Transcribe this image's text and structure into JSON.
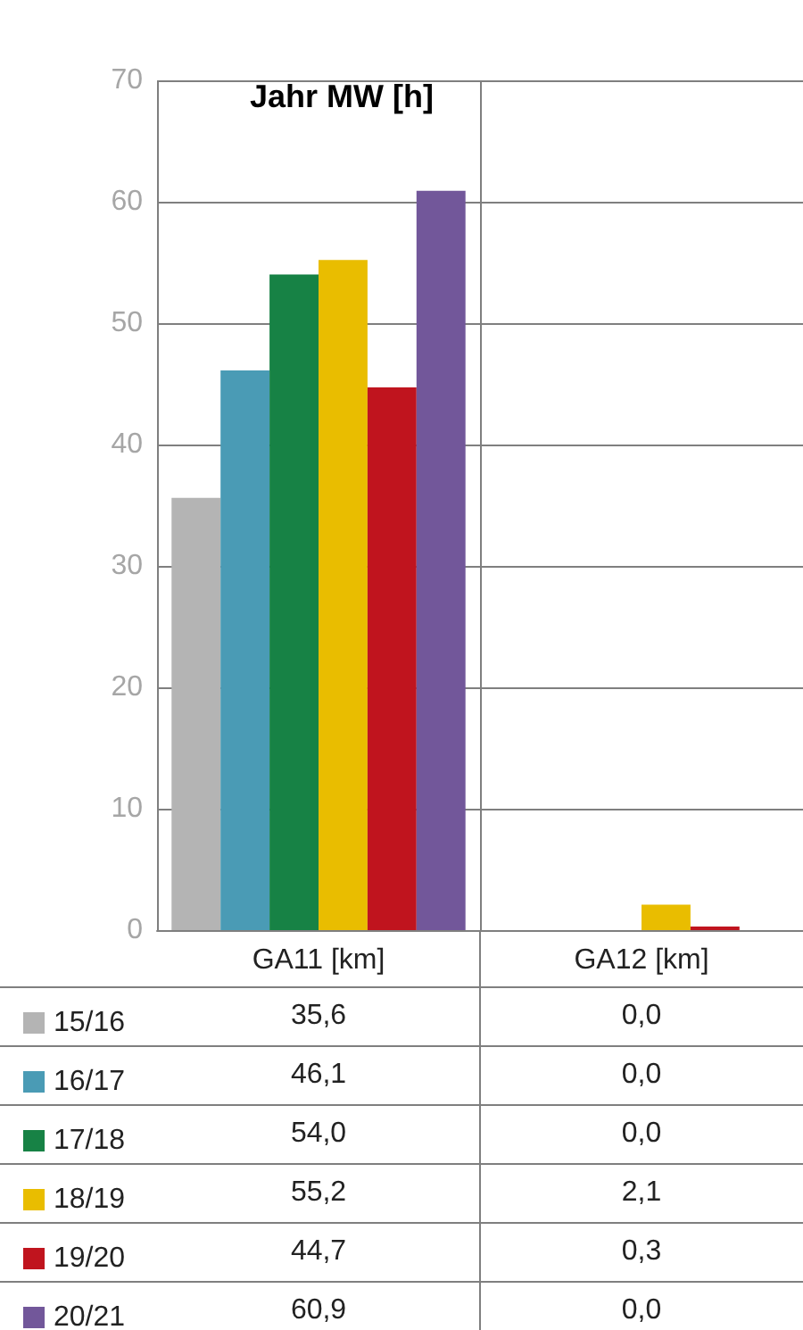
{
  "chart_data": {
    "type": "bar",
    "title": "Jahr MW [h]",
    "categories": [
      "GA11 [km]",
      "GA12 [km]"
    ],
    "series": [
      {
        "name": "15/16",
        "color": "#b4b4b4",
        "values": [
          35.6,
          0.0
        ],
        "value_labels": [
          "35,6",
          "0,0"
        ]
      },
      {
        "name": "16/17",
        "color": "#4a9bb5",
        "values": [
          46.1,
          0.0
        ],
        "value_labels": [
          "46,1",
          "0,0"
        ]
      },
      {
        "name": "17/18",
        "color": "#178245",
        "values": [
          54.0,
          0.0
        ],
        "value_labels": [
          "54,0",
          "0,0"
        ]
      },
      {
        "name": "18/19",
        "color": "#e9bd00",
        "values": [
          55.2,
          2.1
        ],
        "value_labels": [
          "55,2",
          "2,1"
        ]
      },
      {
        "name": "19/20",
        "color": "#c0141e",
        "values": [
          44.7,
          0.3
        ],
        "value_labels": [
          "44,7",
          "0,3"
        ]
      },
      {
        "name": "20/21",
        "color": "#72579a",
        "values": [
          60.9,
          0.0
        ],
        "value_labels": [
          "60,9",
          "0,0"
        ]
      }
    ],
    "ylim": [
      0,
      70
    ],
    "yticks": [
      0,
      10,
      20,
      30,
      40,
      50,
      60,
      70
    ],
    "grid": true,
    "legend": "bottom"
  }
}
